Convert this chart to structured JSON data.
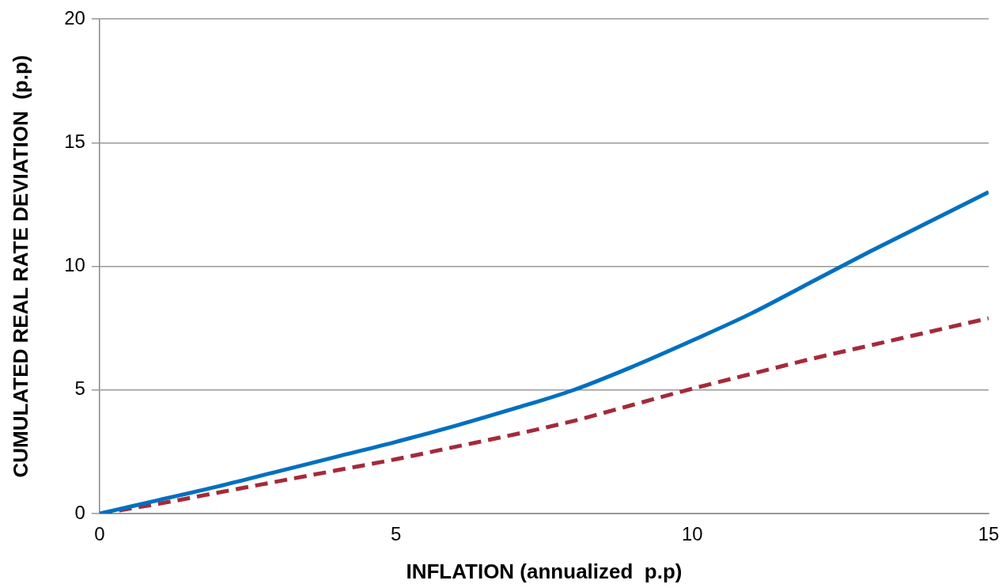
{
  "chart_data": {
    "type": "line",
    "xlabel": "INFLATION (annualized  p.p)",
    "ylabel": "CUMULATED REAL RATE DEVIATION  (p.p)",
    "x": [
      0,
      1,
      2,
      3,
      4,
      5,
      6,
      7,
      8,
      9,
      10,
      11,
      12,
      13,
      14,
      15
    ],
    "series": [
      {
        "color": "#0070c0",
        "line_style": "solid",
        "values": [
          0,
          0.55,
          1.1,
          1.7,
          2.3,
          2.9,
          3.55,
          4.25,
          5.0,
          5.95,
          7.0,
          8.1,
          9.35,
          10.6,
          11.8,
          13.0
        ]
      },
      {
        "color": "#a52a3a",
        "line_style": "dashed",
        "values": [
          0,
          0.4,
          0.85,
          1.3,
          1.75,
          2.2,
          2.7,
          3.2,
          3.75,
          4.4,
          5.05,
          5.65,
          6.25,
          6.8,
          7.35,
          7.9
        ]
      }
    ],
    "xlim": [
      0,
      15
    ],
    "xticks": [
      0,
      5,
      10,
      15
    ],
    "ylim": [
      0,
      20
    ],
    "yticks": [
      0,
      5,
      10,
      15,
      20
    ],
    "grid": "y",
    "legend": false,
    "marker": "none"
  }
}
